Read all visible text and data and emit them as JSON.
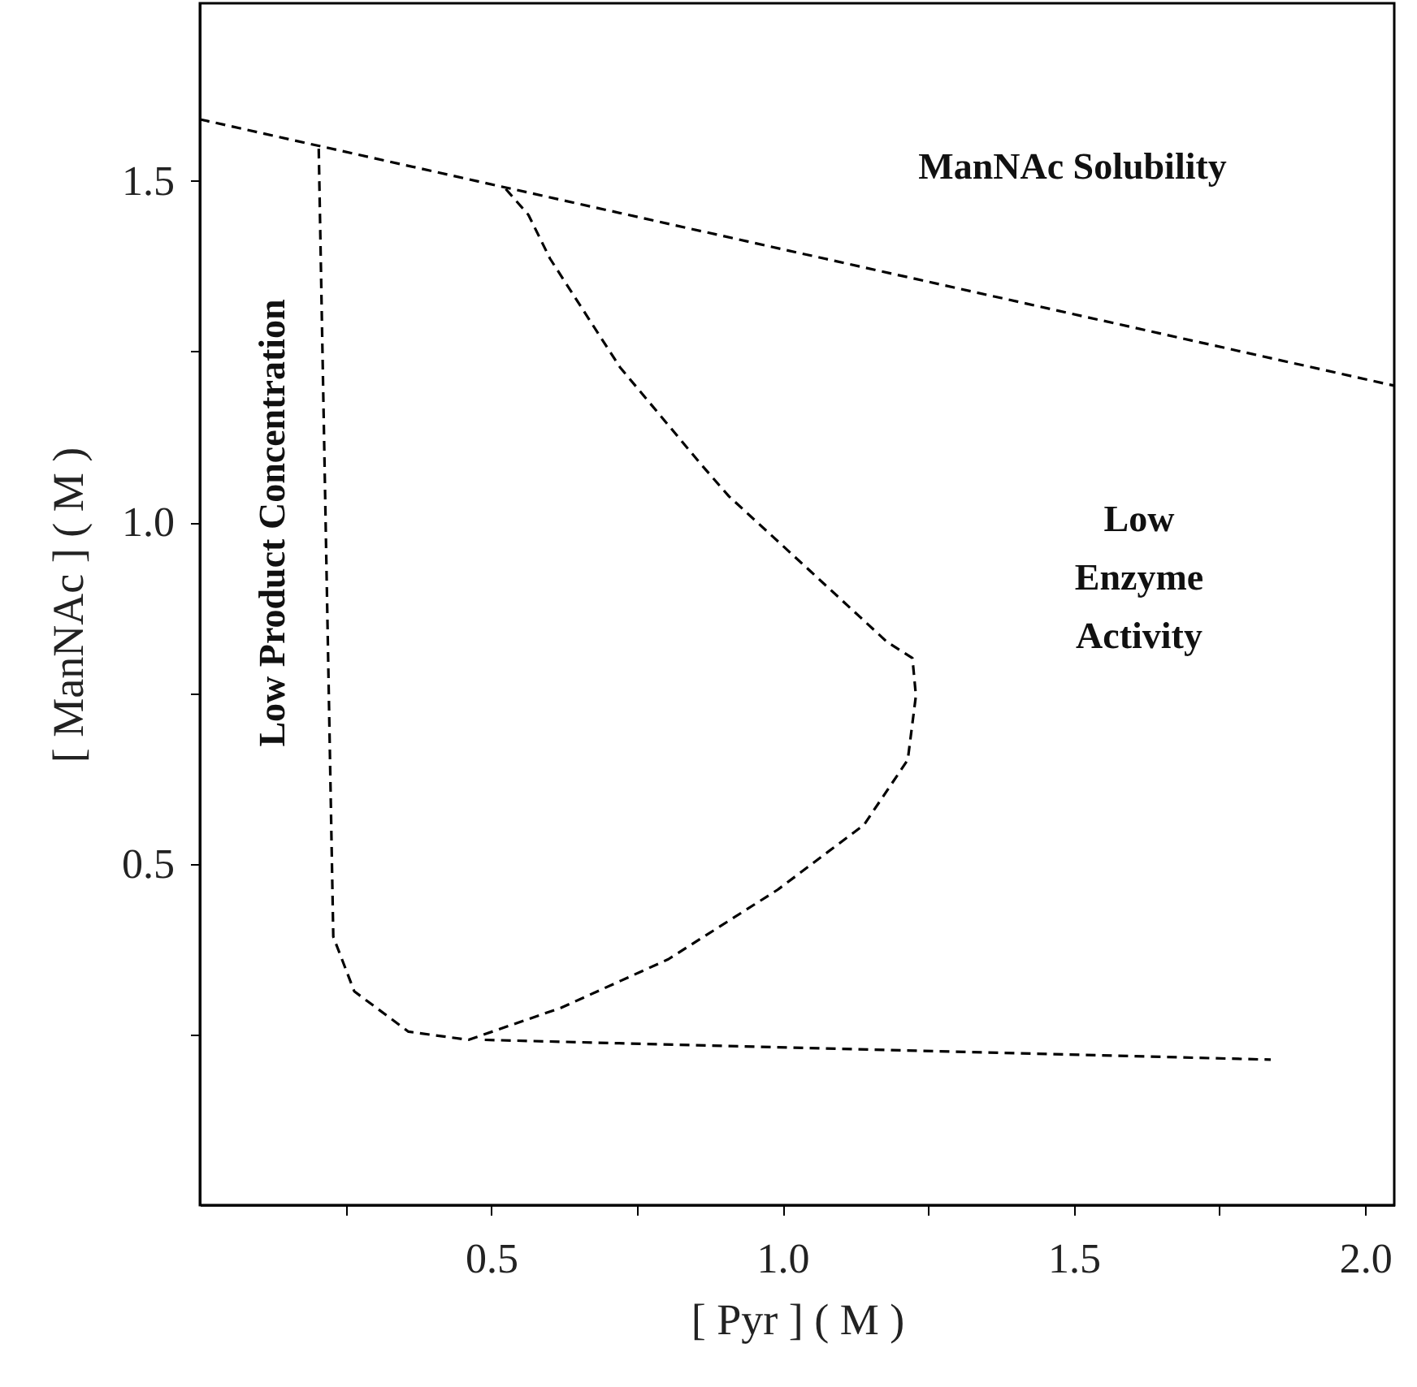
{
  "chart_data": {
    "type": "line",
    "xlabel": "[ Pyr ] ( M )",
    "ylabel": "[ ManNAc ] ( M )",
    "xlim": [
      0,
      2.05
    ],
    "ylim": [
      0,
      1.76
    ],
    "xticks": [
      {
        "value": 0.25,
        "label": null
      },
      0.5,
      {
        "value": 0.75,
        "label": null
      },
      {
        "value": 1,
        "label": "1.0"
      },
      {
        "value": 1.25,
        "label": null
      },
      1.5,
      {
        "value": 1.75,
        "label": null
      },
      {
        "value": 2,
        "label": "2.0"
      }
    ],
    "yticks": [
      {
        "value": 0.25,
        "label": null
      },
      0.5,
      {
        "value": 0.75,
        "label": null
      },
      {
        "value": 1,
        "label": "1.0"
      },
      {
        "value": 1.25,
        "label": null
      },
      1.5
    ],
    "grid": false,
    "line_style": "dashed",
    "marker": "none",
    "series": [
      {
        "color": "#000000",
        "x": [
          0,
          2.05
        ],
        "values": [
          1.59,
          1.2
        ]
      },
      {
        "color": "#000000",
        "x": [
          0.204,
          0.229,
          0.265,
          0.358,
          0.461,
          0.62,
          0.804,
          0.992,
          1.14,
          1.215,
          1.229,
          1.223,
          1.179,
          1.047,
          0.908,
          0.86,
          0.721,
          0.601,
          0.564,
          0.525
        ],
        "values": [
          1.547,
          0.393,
          0.313,
          0.254,
          0.242,
          0.289,
          0.36,
          0.462,
          0.557,
          0.652,
          0.746,
          0.801,
          0.825,
          0.929,
          1.038,
          1.085,
          1.227,
          1.386,
          1.45,
          1.488
        ]
      },
      {
        "color": "#000000",
        "x": [
          0.489,
          1.838
        ],
        "values": [
          0.242,
          0.213
        ]
      }
    ],
    "annotations": [
      "ManNAc Solubility",
      "Low Product Concentration",
      "Low Enzyme Activity"
    ]
  }
}
